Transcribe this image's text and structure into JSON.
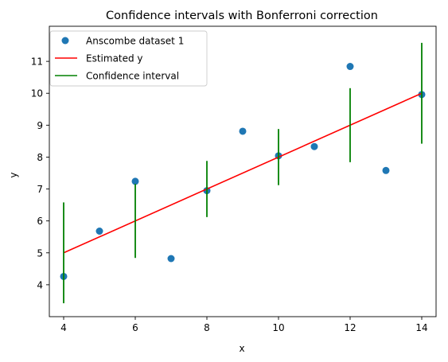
{
  "chart_data": {
    "type": "scatter",
    "title": "Confidence intervals with Bonferroni correction",
    "xlabel": "x",
    "ylabel": "y",
    "xlim": [
      3.6,
      14.4
    ],
    "ylim": [
      3.0,
      12.1
    ],
    "xticks": [
      4,
      6,
      8,
      10,
      12,
      14
    ],
    "yticks": [
      4,
      5,
      6,
      7,
      8,
      9,
      10,
      11
    ],
    "grid": false,
    "legend_position": "top-left",
    "series": [
      {
        "name": "Anscombe dataset 1",
        "kind": "scatter",
        "color": "#1f77b4",
        "x": [
          4,
          5,
          6,
          7,
          8,
          9,
          10,
          11,
          12,
          13,
          14
        ],
        "y": [
          4.26,
          5.68,
          7.24,
          4.82,
          6.95,
          8.81,
          8.04,
          8.33,
          10.84,
          7.58,
          9.96
        ]
      },
      {
        "name": "Estimated y",
        "kind": "line",
        "color": "#ff0000",
        "x": [
          4,
          14
        ],
        "y": [
          5.0,
          10.0
        ]
      },
      {
        "name": "Confidence interval",
        "kind": "errorbar",
        "color": "#008000",
        "x": [
          4,
          6,
          8,
          10,
          12,
          14
        ],
        "low": [
          3.42,
          4.84,
          6.12,
          7.12,
          7.84,
          8.42
        ],
        "high": [
          6.58,
          7.16,
          7.88,
          8.88,
          10.16,
          11.58
        ]
      }
    ]
  }
}
